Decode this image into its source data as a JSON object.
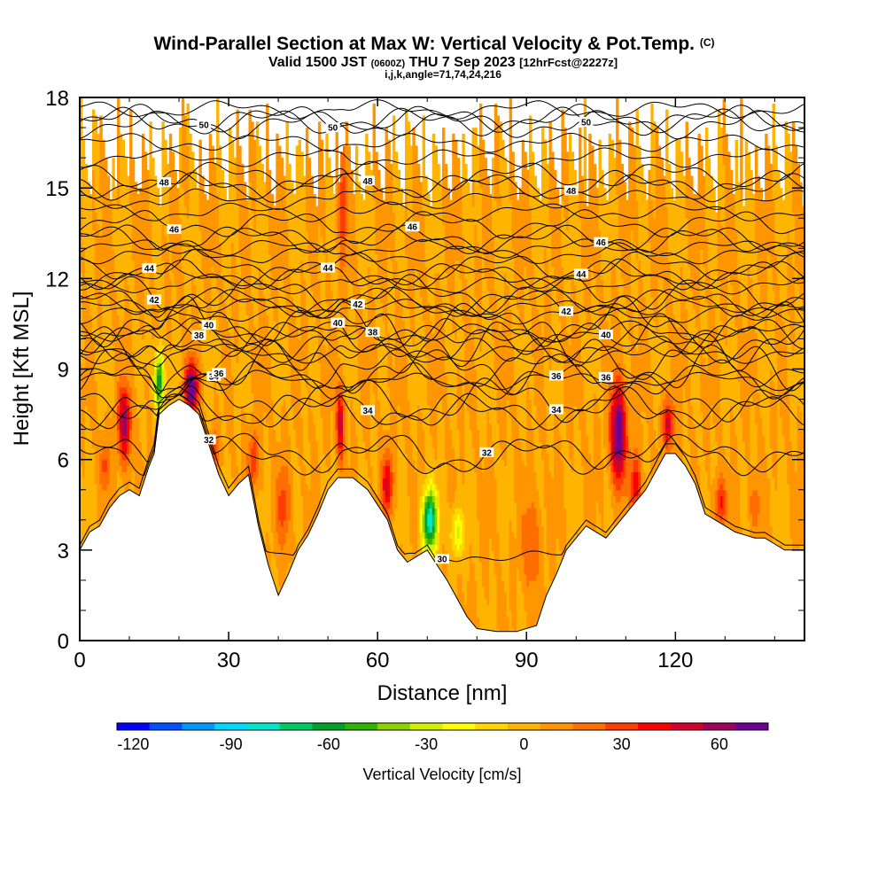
{
  "chart_data": {
    "type": "heatmap",
    "title": "Wind-Parallel Section at Max W: Vertical Velocity & Pot.Temp.",
    "title_mark": "(C)",
    "subtitle": {
      "valid": "Valid 1500 JST",
      "utc": "(0600Z)",
      "date": "THU 7 Sep 2023",
      "fcst": "[12hrFcst@2227z]"
    },
    "subtitle2": "i,j,k,angle=71,74,24,216",
    "xlabel": "Distance [nm]",
    "ylabel": "Height [Kft MSL]",
    "xlim": [
      0,
      146
    ],
    "ylim": [
      0,
      18
    ],
    "x_ticks": [
      "0",
      "30",
      "60",
      "90",
      "120"
    ],
    "x_tick_values": [
      0,
      30,
      60,
      90,
      120
    ],
    "y_ticks": [
      "0",
      "3",
      "6",
      "9",
      "12",
      "15",
      "18"
    ],
    "y_tick_values": [
      0,
      3,
      6,
      9,
      12,
      15,
      18
    ],
    "colorbar": {
      "label": "Vertical Velocity [cm/s]",
      "ticks": [
        "-120",
        "-90",
        "-60",
        "-30",
        "0",
        "30",
        "60"
      ],
      "tick_values": [
        -120,
        -90,
        -60,
        -30,
        0,
        30,
        60
      ],
      "min": -125,
      "max": 75,
      "step": 10,
      "colors": [
        "#0000ff",
        "#0050ff",
        "#0096ff",
        "#00d8ff",
        "#00e6c8",
        "#00c864",
        "#00a028",
        "#32b400",
        "#8cd200",
        "#d2f000",
        "#ffff00",
        "#ffd700",
        "#ffb400",
        "#ff9600",
        "#ff6e00",
        "#ff3c00",
        "#ff0000",
        "#d2002d",
        "#a0005a",
        "#6e0096"
      ]
    },
    "terrain": [
      [
        0,
        3.0
      ],
      [
        2,
        3.6
      ],
      [
        4,
        3.8
      ],
      [
        6,
        4.4
      ],
      [
        8,
        4.8
      ],
      [
        10,
        5.0
      ],
      [
        12,
        4.8
      ],
      [
        14,
        5.8
      ],
      [
        15,
        6.2
      ],
      [
        16,
        7.5
      ],
      [
        18,
        7.8
      ],
      [
        20,
        8.0
      ],
      [
        22,
        7.8
      ],
      [
        24,
        7.5
      ],
      [
        26,
        6.5
      ],
      [
        28,
        5.5
      ],
      [
        30,
        4.8
      ],
      [
        32,
        5.2
      ],
      [
        34,
        5.5
      ],
      [
        36,
        3.8
      ],
      [
        38,
        2.5
      ],
      [
        40,
        1.5
      ],
      [
        42,
        2.2
      ],
      [
        44,
        3.0
      ],
      [
        46,
        3.5
      ],
      [
        48,
        4.2
      ],
      [
        50,
        5.0
      ],
      [
        52,
        5.4
      ],
      [
        55,
        5.4
      ],
      [
        58,
        5.0
      ],
      [
        60,
        4.5
      ],
      [
        62,
        4.0
      ],
      [
        64,
        3.0
      ],
      [
        66,
        2.6
      ],
      [
        68,
        2.8
      ],
      [
        70,
        3.0
      ],
      [
        72,
        2.5
      ],
      [
        74,
        2.0
      ],
      [
        76,
        1.4
      ],
      [
        78,
        0.8
      ],
      [
        80,
        0.4
      ],
      [
        84,
        0.3
      ],
      [
        88,
        0.3
      ],
      [
        92,
        0.5
      ],
      [
        94,
        1.5
      ],
      [
        96,
        2.2
      ],
      [
        98,
        3.0
      ],
      [
        100,
        3.4
      ],
      [
        102,
        3.8
      ],
      [
        104,
        3.6
      ],
      [
        106,
        3.4
      ],
      [
        108,
        3.8
      ],
      [
        110,
        4.2
      ],
      [
        112,
        4.6
      ],
      [
        114,
        5.0
      ],
      [
        116,
        5.6
      ],
      [
        118,
        6.2
      ],
      [
        120,
        6.2
      ],
      [
        122,
        5.8
      ],
      [
        124,
        5.2
      ],
      [
        126,
        4.2
      ],
      [
        128,
        4.0
      ],
      [
        130,
        3.8
      ],
      [
        132,
        3.6
      ],
      [
        134,
        3.5
      ],
      [
        136,
        3.4
      ],
      [
        138,
        3.4
      ],
      [
        140,
        3.2
      ],
      [
        142,
        3.0
      ],
      [
        146,
        3.0
      ]
    ],
    "updrafts": [
      {
        "x": 9,
        "z": 7.2,
        "w": 55,
        "sx": 1.3,
        "sz": 1.2
      },
      {
        "x": 16,
        "z": 8.6,
        "w": -75,
        "sx": 0.9,
        "sz": 1.0
      },
      {
        "x": 22.5,
        "z": 8.4,
        "w": 75,
        "sx": 1.3,
        "sz": 0.8
      },
      {
        "x": 27,
        "z": 6.3,
        "w": 28,
        "sx": 1.0,
        "sz": 0.6
      },
      {
        "x": 35,
        "z": 6.0,
        "w": 30,
        "sx": 1.1,
        "sz": 0.9
      },
      {
        "x": 41,
        "z": 4.5,
        "w": 25,
        "sx": 1.4,
        "sz": 1.3
      },
      {
        "x": 52.5,
        "z": 7.2,
        "w": 48,
        "sx": 0.8,
        "sz": 1.2
      },
      {
        "x": 53,
        "z": 14.5,
        "w": 28,
        "sx": 0.8,
        "sz": 2.0
      },
      {
        "x": 62,
        "z": 5.2,
        "w": 42,
        "sx": 1.1,
        "sz": 1.0
      },
      {
        "x": 70.5,
        "z": 4.0,
        "w": -90,
        "sx": 1.5,
        "sz": 1.0
      },
      {
        "x": 76,
        "z": 3.6,
        "w": -35,
        "sx": 1.2,
        "sz": 0.8
      },
      {
        "x": 91,
        "z": 3.2,
        "w": 22,
        "sx": 1.8,
        "sz": 1.5
      },
      {
        "x": 108.5,
        "z": 6.9,
        "w": 75,
        "sx": 1.5,
        "sz": 1.6
      },
      {
        "x": 112,
        "z": 5.2,
        "w": 38,
        "sx": 1.1,
        "sz": 1.0
      },
      {
        "x": 118.5,
        "z": 7.2,
        "w": 45,
        "sx": 1.1,
        "sz": 0.8
      },
      {
        "x": 129,
        "z": 4.6,
        "w": 32,
        "sx": 1.1,
        "sz": 0.8
      },
      {
        "x": 136,
        "z": 4.5,
        "w": 20,
        "sx": 1.0,
        "sz": 0.8
      },
      {
        "x": 5,
        "z": 5.8,
        "w": 22,
        "sx": 1.0,
        "sz": 0.8
      }
    ],
    "theta_contours": [
      {
        "theta": 30,
        "label": "30",
        "z0": 2.8,
        "pert": 0.1,
        "label_x": 73
      },
      {
        "theta": 32,
        "label": "32",
        "z0": 6.2,
        "pert": 0.4,
        "label_x": 26
      },
      {
        "theta": 32,
        "label": "32",
        "z0": 6.1,
        "pert": 0.4,
        "label_x": 82
      },
      {
        "theta": 34,
        "label": "34",
        "z0": 8.0,
        "pert": 0.5,
        "label_x": 27
      },
      {
        "theta": 34,
        "label": "34",
        "z0": 7.6,
        "pert": 0.4,
        "label_x": 58
      },
      {
        "theta": 34,
        "label": "34",
        "z0": 7.6,
        "pert": 0.4,
        "label_x": 96
      },
      {
        "theta": 36,
        "label": "36",
        "z0": 9.1,
        "pert": 0.6,
        "label_x": 28
      },
      {
        "theta": 36,
        "label": "36",
        "z0": 8.6,
        "pert": 0.4,
        "label_x": 96
      },
      {
        "theta": 36,
        "label": "36",
        "z0": 9.0,
        "pert": 0.4,
        "label_x": 106
      },
      {
        "theta": 38,
        "label": "38",
        "z0": 9.9,
        "pert": 0.6,
        "label_x": 24
      },
      {
        "theta": 38,
        "label": "38",
        "z0": 9.8,
        "pert": 0.4,
        "label_x": 59
      },
      {
        "theta": 40,
        "label": "40",
        "z0": 10.5,
        "pert": 0.5,
        "label_x": 26
      },
      {
        "theta": 40,
        "label": "40",
        "z0": 10.1,
        "pert": 0.4,
        "label_x": 52
      },
      {
        "theta": 40,
        "label": "40",
        "z0": 9.9,
        "pert": 0.4,
        "label_x": 106
      },
      {
        "theta": 42,
        "label": "42",
        "z0": 11.5,
        "pert": 0.4,
        "label_x": 15
      },
      {
        "theta": 42,
        "label": "42",
        "z0": 11.2,
        "pert": 0.3,
        "label_x": 56
      },
      {
        "theta": 42,
        "label": "42",
        "z0": 11.2,
        "pert": 0.3,
        "label_x": 98
      },
      {
        "theta": 44,
        "label": "44",
        "z0": 12.4,
        "pert": 0.3,
        "label_x": 14
      },
      {
        "theta": 44,
        "label": "44",
        "z0": 12.1,
        "pert": 0.3,
        "label_x": 50
      },
      {
        "theta": 44,
        "label": "44",
        "z0": 12.1,
        "pert": 0.3,
        "label_x": 101
      },
      {
        "theta": 46,
        "label": "46",
        "z0": 13.8,
        "pert": 0.3,
        "label_x": 19
      },
      {
        "theta": 46,
        "label": "46",
        "z0": 13.3,
        "pert": 0.3,
        "label_x": 67
      },
      {
        "theta": 46,
        "label": "46",
        "z0": 13.3,
        "pert": 0.3,
        "label_x": 105
      },
      {
        "theta": 48,
        "label": "48",
        "z0": 15.4,
        "pert": 0.3,
        "label_x": 17
      },
      {
        "theta": 48,
        "label": "48",
        "z0": 15.0,
        "pert": 0.3,
        "label_x": 58
      },
      {
        "theta": 48,
        "label": "48",
        "z0": 15.1,
        "pert": 0.3,
        "label_x": 99
      },
      {
        "theta": 50,
        "label": "50",
        "z0": 17.1,
        "pert": 0.3,
        "label_x": 25
      },
      {
        "theta": 50,
        "label": "50",
        "z0": 17.3,
        "pert": 0.3,
        "label_x": 51
      },
      {
        "theta": 50,
        "label": "50",
        "z0": 17.2,
        "pert": 0.3,
        "label_x": 102
      }
    ],
    "extra_isentropes": [
      8.6,
      9.5,
      10.2,
      10.8,
      11.0,
      11.8,
      12.8,
      13.0,
      14.2,
      14.6,
      16.0,
      16.5,
      17.6
    ]
  }
}
